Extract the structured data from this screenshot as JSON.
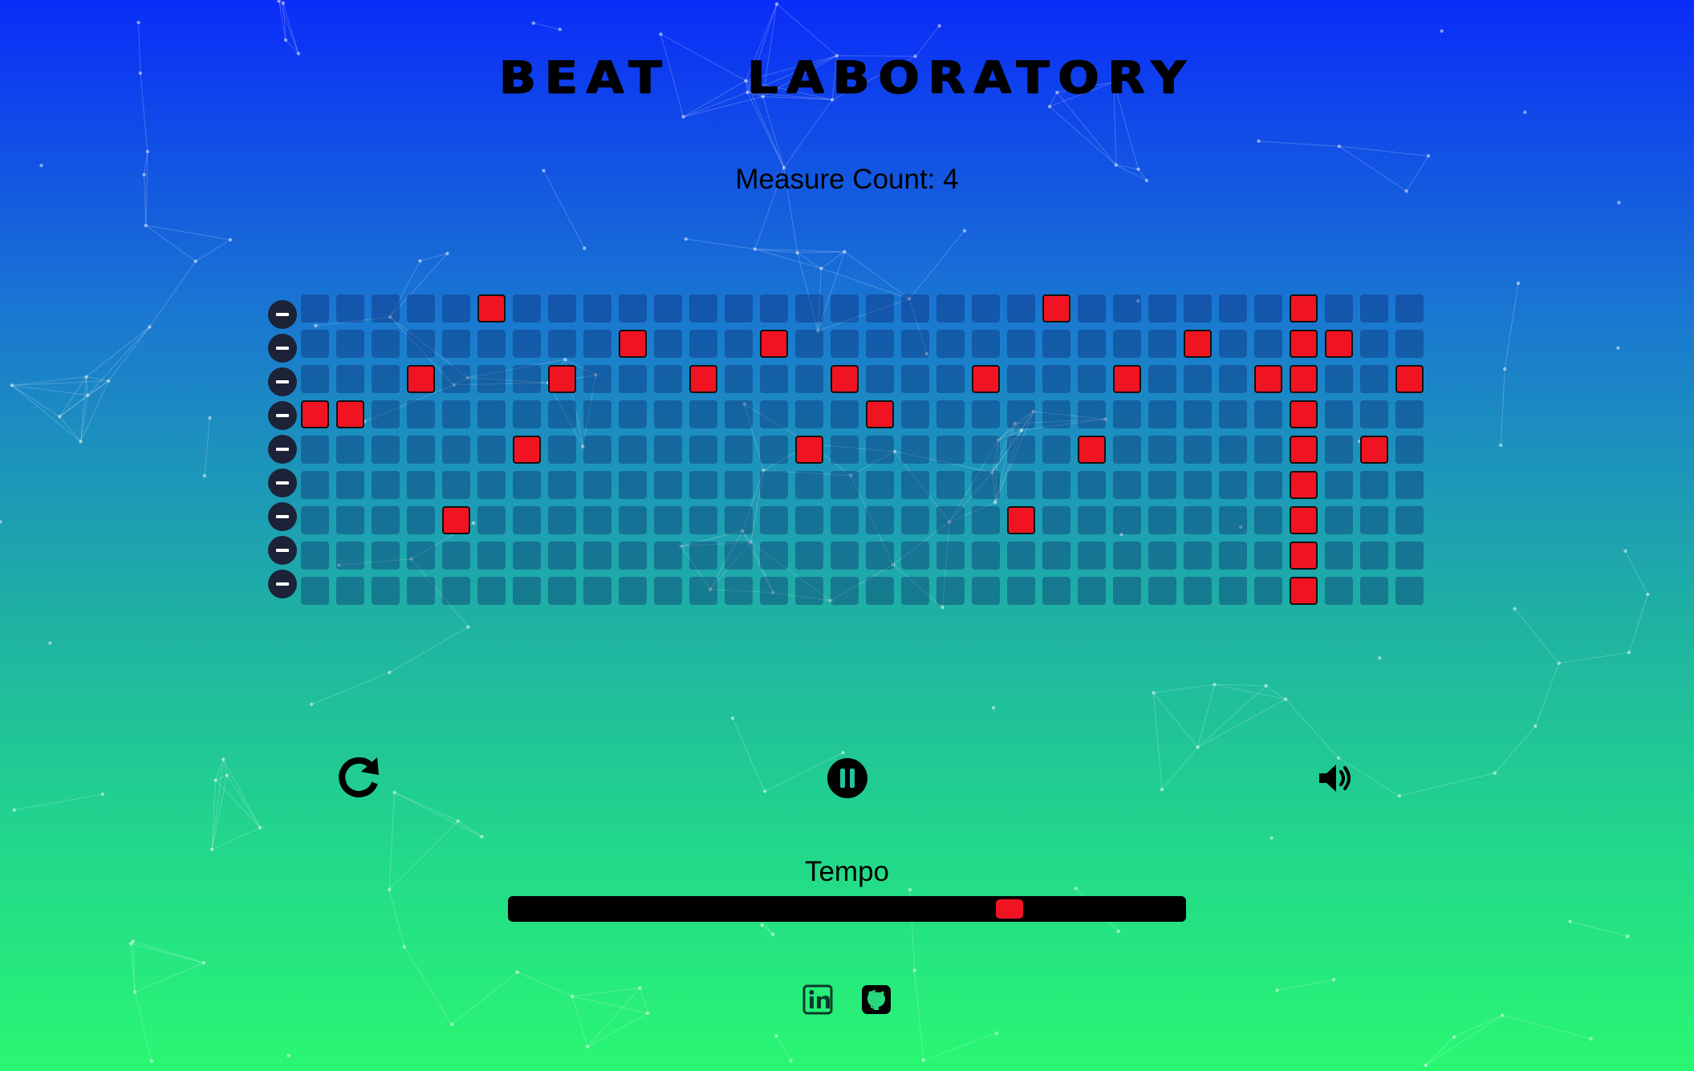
{
  "app": {
    "title": "BEAT   LABORATORY",
    "measure_label": "Measure Count: 4"
  },
  "sequencer": {
    "rows": 9,
    "steps": 32,
    "active_cells": [
      [
        5,
        21,
        28
      ],
      [
        9,
        13,
        25,
        28,
        29
      ],
      [
        3,
        7,
        11,
        15,
        19,
        23,
        27,
        28,
        31
      ],
      [
        0,
        1,
        16,
        28
      ],
      [
        6,
        14,
        22,
        28,
        30
      ],
      [
        28
      ],
      [
        4,
        20,
        28
      ],
      [
        28
      ],
      [
        28
      ]
    ],
    "row_remove_icon": "minus-icon",
    "colors": {
      "active": "#f01423",
      "inactive": "rgba(10,30,100,0.35)"
    }
  },
  "controls": {
    "reset_icon": "redo-icon",
    "play_pause_icon": "pause-icon",
    "volume_icon": "volume-icon"
  },
  "tempo": {
    "label": "Tempo",
    "value_fraction": 0.74
  },
  "footer": {
    "linkedin_icon": "linkedin-icon",
    "github_icon": "github-icon"
  }
}
